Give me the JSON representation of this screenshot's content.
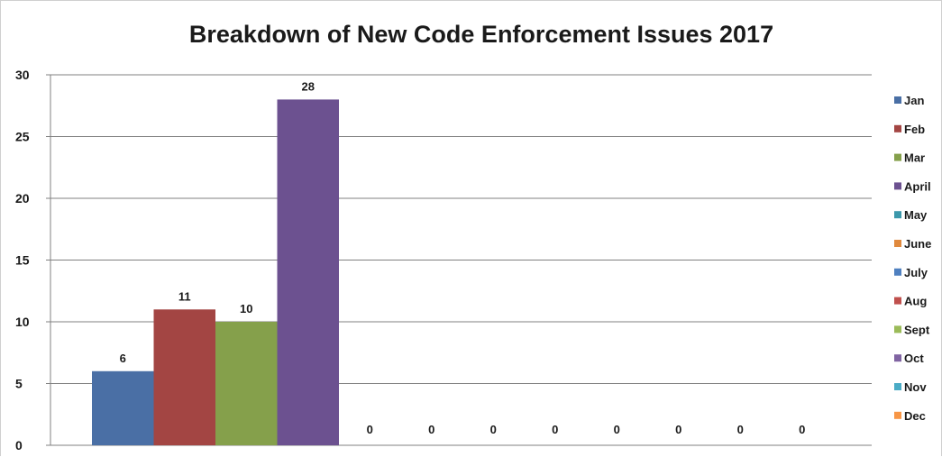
{
  "chart_data": {
    "type": "bar",
    "title": "Breakdown of New Code Enforcement Issues 2017",
    "xlabel": "",
    "ylabel": "",
    "ylim": [
      0,
      30
    ],
    "yticks": [
      "0",
      "5",
      "10",
      "15",
      "20",
      "25",
      "30"
    ],
    "grid": true,
    "legend_position": "right",
    "series": [
      {
        "name": "Jan",
        "value": 6,
        "color": "#4a6fa5"
      },
      {
        "name": "Feb",
        "value": 11,
        "color": "#a34543"
      },
      {
        "name": "Mar",
        "value": 10,
        "color": "#85a04b"
      },
      {
        "name": "April",
        "value": 28,
        "color": "#6c5190"
      },
      {
        "name": "May",
        "value": 0,
        "color": "#3c98ab"
      },
      {
        "name": "June",
        "value": 0,
        "color": "#e0893d"
      },
      {
        "name": "July",
        "value": 0,
        "color": "#4f80c0"
      },
      {
        "name": "Aug",
        "value": 0,
        "color": "#c0504d"
      },
      {
        "name": "Sept",
        "value": 0,
        "color": "#9bbb59"
      },
      {
        "name": "Oct",
        "value": 0,
        "color": "#8064a2"
      },
      {
        "name": "Nov",
        "value": 0,
        "color": "#4bacc6"
      },
      {
        "name": "Dec",
        "value": 0,
        "color": "#f79646"
      }
    ],
    "data_labels": [
      "6",
      "11",
      "10",
      "28",
      "0",
      "0",
      "0",
      "0",
      "0",
      "0",
      "0",
      "0"
    ]
  }
}
